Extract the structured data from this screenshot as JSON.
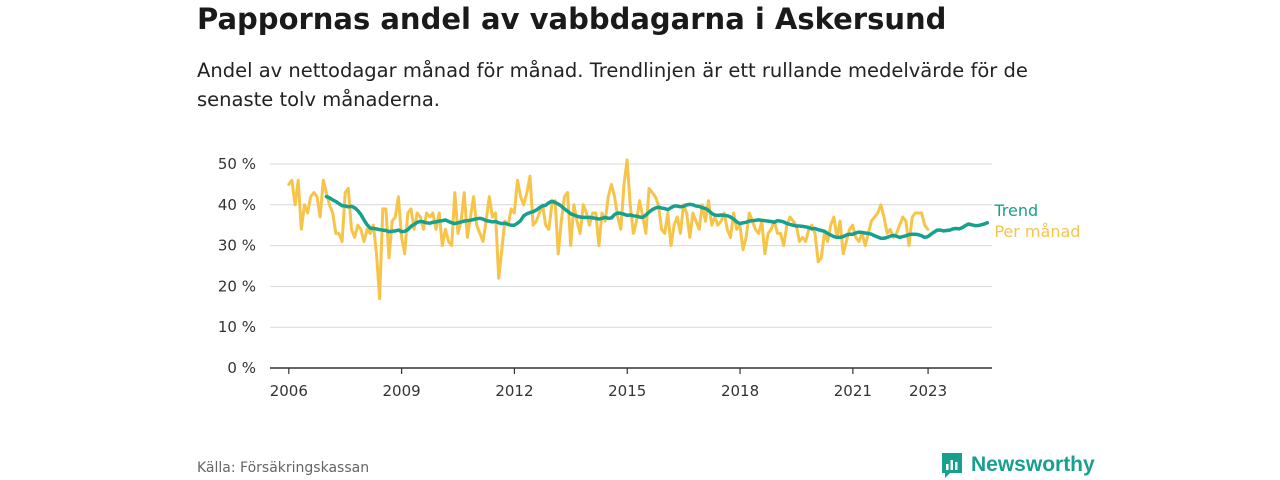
{
  "title": "Pappornas andel av vabbdagarna i Askersund",
  "subtitle": "Andel av nettodagar månad för månad. Trendlinjen är ett rullande medelvärde för de senaste tolv månaderna.",
  "source": "Källa: Försäkringskassan",
  "brand": "Newsworthy",
  "colors": {
    "trend": "#17a08e",
    "monthly": "#f7c44a",
    "grid": "#d9d9d9",
    "axis": "#333333"
  },
  "chart_data": {
    "type": "line",
    "x_axis": {
      "min": 2005.5,
      "max": 2024.7,
      "ticks": [
        2006,
        2009,
        2012,
        2015,
        2018,
        2021,
        2023
      ]
    },
    "y_axis": {
      "min": 0,
      "max": 50,
      "ticks": [
        {
          "value": 0,
          "label": "0 %"
        },
        {
          "value": 10,
          "label": "10 %"
        },
        {
          "value": 20,
          "label": "20 %"
        },
        {
          "value": 30,
          "label": "30 %"
        },
        {
          "value": 40,
          "label": "40 %"
        },
        {
          "value": 50,
          "label": "50 %"
        }
      ]
    },
    "grid": true,
    "legend": "end-of-line labels, right",
    "series": [
      {
        "name": "Per månad",
        "color": "#f7c44a",
        "start": 2006.0,
        "step": 0.0833,
        "values": [
          45,
          46,
          40,
          46,
          34,
          40,
          38,
          42,
          43,
          42,
          37,
          46,
          43,
          40,
          38,
          33,
          33,
          31,
          43,
          44,
          34,
          32,
          35,
          34,
          31,
          34,
          33,
          35,
          28,
          17,
          39,
          39,
          27,
          36,
          37,
          42,
          32,
          28,
          38,
          39,
          34,
          38,
          37,
          34,
          38,
          37,
          38,
          34,
          38,
          30,
          34,
          31,
          30,
          43,
          33,
          36,
          43,
          32,
          37,
          42,
          35,
          33,
          31,
          36,
          42,
          37,
          38,
          22,
          29,
          36,
          35,
          39,
          38,
          46,
          42,
          40,
          43,
          47,
          35,
          36,
          38,
          40,
          35,
          34,
          40,
          41,
          28,
          36,
          42,
          43,
          30,
          40,
          36,
          33,
          40,
          38,
          35,
          38,
          38,
          30,
          38,
          36,
          42,
          45,
          42,
          37,
          34,
          45,
          51,
          40,
          33,
          36,
          41,
          37,
          33,
          44,
          43,
          42,
          40,
          34,
          33,
          38,
          30,
          35,
          37,
          33,
          40,
          38,
          32,
          38,
          36,
          34,
          40,
          36,
          41,
          35,
          37,
          35,
          36,
          38,
          34,
          32,
          38,
          34,
          35,
          29,
          32,
          38,
          36,
          34,
          33,
          36,
          28,
          33,
          34,
          36,
          33,
          33,
          30,
          35,
          37,
          36,
          35,
          31,
          32,
          31,
          34,
          35,
          33,
          26,
          27,
          33,
          31,
          35,
          37,
          32,
          36,
          28,
          31,
          34,
          35,
          32,
          31,
          33,
          30,
          33,
          36,
          37,
          38,
          40,
          37,
          33,
          34,
          32,
          33,
          35,
          37,
          36,
          30,
          37,
          38,
          38,
          38,
          35,
          34
        ]
      },
      {
        "name": "Trend",
        "color": "#17a08e",
        "start": 2007.0,
        "step": 0.0833,
        "values": [
          42,
          41.7,
          41.2,
          40.8,
          40.3,
          39.8,
          39.7,
          39.5,
          39.6,
          39.3,
          38.6,
          37.6,
          36.3,
          35.1,
          34.3,
          34.2,
          34.1,
          33.9,
          33.8,
          33.7,
          33.4,
          33.5,
          33.6,
          33.8,
          33.4,
          33.5,
          33.9,
          34.7,
          35.2,
          35.7,
          35.9,
          35.8,
          35.6,
          35.5,
          35.7,
          35.8,
          36.0,
          36.1,
          36.3,
          35.9,
          35.6,
          35.4,
          35.6,
          35.8,
          36.0,
          36.1,
          36.2,
          36.4,
          36.6,
          36.7,
          36.5,
          36.1,
          36.0,
          35.8,
          35.9,
          35.6,
          35.4,
          35.5,
          35.2,
          35.0,
          35.0,
          35.5,
          36.1,
          37.3,
          37.8,
          38.1,
          38.3,
          38.7,
          39.3,
          39.7,
          39.9,
          40.5,
          40.9,
          40.6,
          40.2,
          39.7,
          39.0,
          38.4,
          37.8,
          37.5,
          37.2,
          37.0,
          36.9,
          36.9,
          36.9,
          36.8,
          36.7,
          36.5,
          36.7,
          36.9,
          36.7,
          36.8,
          37.6,
          38.0,
          37.9,
          37.7,
          37.4,
          37.5,
          37.3,
          37.2,
          37.0,
          36.9,
          37.5,
          38.2,
          38.8,
          39.2,
          39.4,
          39.2,
          39.1,
          38.8,
          39.3,
          39.7,
          39.7,
          39.5,
          39.6,
          40.0,
          40.1,
          40.0,
          39.7,
          39.6,
          39.3,
          39.1,
          38.6,
          37.9,
          37.5,
          37.4,
          37.5,
          37.4,
          37.3,
          37.0,
          36.5,
          35.8,
          35.4,
          35.6,
          35.7,
          36.0,
          36.1,
          36.2,
          36.3,
          36.2,
          36.1,
          36.0,
          35.9,
          35.7,
          36.1,
          36.0,
          35.8,
          35.4,
          35.2,
          35.0,
          34.8,
          34.8,
          34.7,
          34.6,
          34.4,
          34.1,
          34.2,
          33.9,
          33.7,
          33.5,
          33.0,
          32.6,
          32.2,
          32.0,
          32.0,
          32.2,
          32.6,
          32.8,
          32.8,
          33.1,
          33.3,
          33.2,
          33.1,
          33.0,
          32.8,
          32.4,
          32.1,
          31.8,
          31.8,
          32.0,
          32.3,
          32.5,
          32.3,
          32.0,
          32.2,
          32.4,
          32.7,
          32.8,
          32.8,
          32.7,
          32.4,
          32.0,
          32.2,
          32.8,
          33.3,
          33.8,
          33.8,
          33.6,
          33.7,
          33.8,
          34.1,
          34.2,
          34.1,
          34.4,
          34.9,
          35.3,
          35.1,
          34.9,
          34.9,
          35.1,
          35.3,
          35.6
        ]
      }
    ]
  }
}
